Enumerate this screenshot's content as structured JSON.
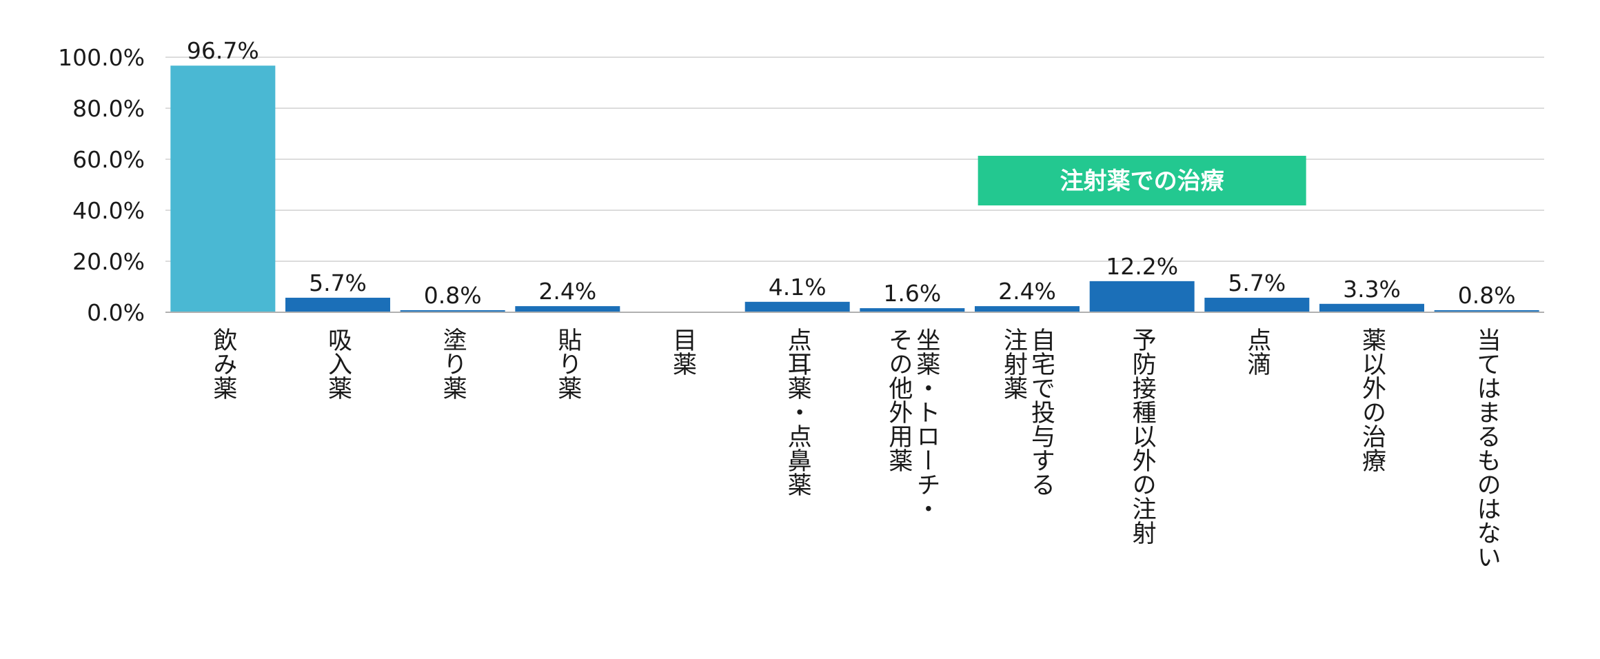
{
  "chart_data": {
    "type": "bar",
    "categories": [
      "飲み薬",
      "吸入薬",
      "塗り薬",
      "貼り薬",
      "目薬",
      "点耳薬・点鼻薬",
      "坐薬・トローチ・\nその他外用薬",
      "自宅で投与する\n注射薬",
      "予防接種以外の注射",
      "点滴",
      "薬以外の治療",
      "当てはまるものはない"
    ],
    "values": [
      96.7,
      5.7,
      0.8,
      2.4,
      null,
      4.1,
      1.6,
      2.4,
      12.2,
      5.7,
      3.3,
      0.8
    ],
    "value_labels": [
      "96.7%",
      "5.7%",
      "0.8%",
      "2.4%",
      "",
      "4.1%",
      "1.6%",
      "2.4%",
      "12.2%",
      "5.7%",
      "3.3%",
      "0.8%"
    ],
    "ylim": [
      0,
      100
    ],
    "yticks": [
      "0.0%",
      "20.0%",
      "40.0%",
      "60.0%",
      "80.0%",
      "100.0%"
    ],
    "grid": true,
    "title": "",
    "xlabel": "",
    "ylabel": "",
    "annotation": {
      "text": "注射薬での治療",
      "spans_categories": [
        "自宅で投与する\n注射薬",
        "予防接種以外の注射",
        "点滴"
      ]
    },
    "colors": {
      "highlight_bar": "#4ab8d3",
      "bar": "#1b6fb8",
      "annotation_bg": "#23c890",
      "grid": "#d0d0d0",
      "axis": "#b0b0b0"
    }
  }
}
